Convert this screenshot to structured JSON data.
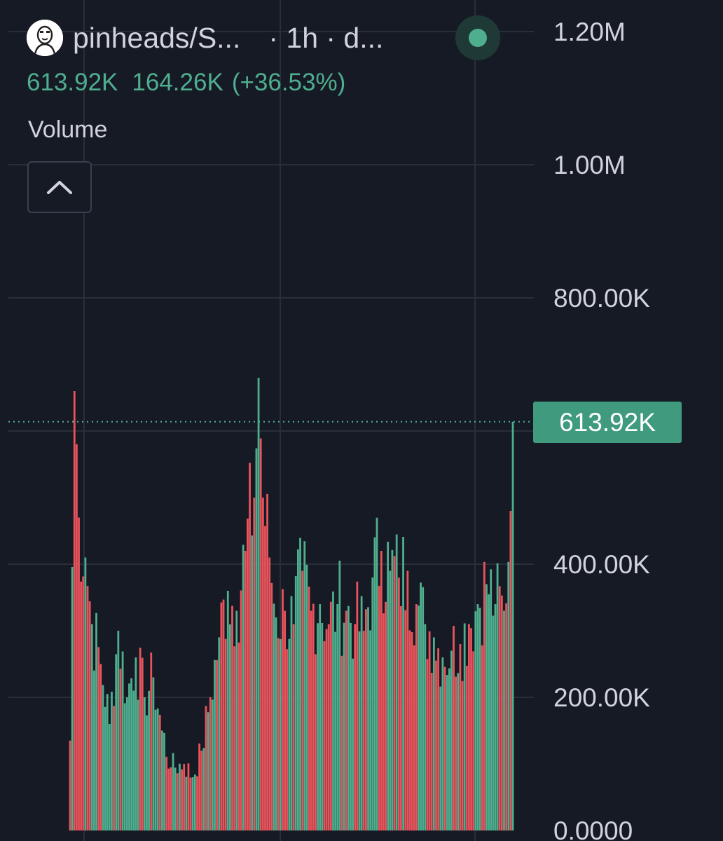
{
  "header": {
    "symbol": "pinheads/S...",
    "interval": "· 1h · d...",
    "status_color": "#4fae8e"
  },
  "legend": {
    "value": "613.92K",
    "change": "164.26K",
    "change_pct": "(+36.53%)"
  },
  "indicator": {
    "label": "Volume",
    "collapse_icon": "chevron-up-icon"
  },
  "price_tag": "613.92K",
  "colors": {
    "background": "#161a25",
    "up": "#4fae8e",
    "down": "#e8545c",
    "grid": "#2a2e39",
    "axis_text": "#d1d4dc"
  },
  "chart_data": {
    "type": "bar",
    "title": "Volume",
    "ylim": [
      0,
      1200000
    ],
    "y_ticks": [
      {
        "value": 0,
        "label": "0.0000"
      },
      {
        "value": 200000,
        "label": "200.00K"
      },
      {
        "value": 400000,
        "label": "400.00K"
      },
      {
        "value": 800000,
        "label": "800.00K"
      },
      {
        "value": 1000000,
        "label": "1.00M"
      },
      {
        "value": 1200000,
        "label": "1.20M"
      }
    ],
    "last_value": 613920,
    "series": [
      {
        "name": "up",
        "color": "#4fae8e"
      },
      {
        "name": "down",
        "color": "#e8545c"
      }
    ],
    "control_points": [
      [
        0,
        135000
      ],
      [
        2,
        660000
      ],
      [
        4,
        470000
      ],
      [
        7,
        410000
      ],
      [
        10,
        310000
      ],
      [
        14,
        250000
      ],
      [
        18,
        160000
      ],
      [
        22,
        300000
      ],
      [
        26,
        200000
      ],
      [
        30,
        260000
      ],
      [
        34,
        200000
      ],
      [
        38,
        230000
      ],
      [
        42,
        150000
      ],
      [
        46,
        95000
      ],
      [
        52,
        100000
      ],
      [
        56,
        80000
      ],
      [
        60,
        120000
      ],
      [
        64,
        200000
      ],
      [
        68,
        290000
      ],
      [
        72,
        360000
      ],
      [
        76,
        330000
      ],
      [
        80,
        420000
      ],
      [
        84,
        500000
      ],
      [
        86,
        680000
      ],
      [
        88,
        500000
      ],
      [
        91,
        410000
      ],
      [
        94,
        320000
      ],
      [
        98,
        330000
      ],
      [
        102,
        310000
      ],
      [
        106,
        390000
      ],
      [
        110,
        330000
      ],
      [
        114,
        340000
      ],
      [
        118,
        310000
      ],
      [
        122,
        340000
      ],
      [
        126,
        330000
      ],
      [
        130,
        310000
      ],
      [
        134,
        300000
      ],
      [
        138,
        380000
      ],
      [
        142,
        420000
      ],
      [
        146,
        390000
      ],
      [
        150,
        380000
      ],
      [
        154,
        390000
      ],
      [
        158,
        340000
      ],
      [
        162,
        310000
      ],
      [
        166,
        290000
      ],
      [
        170,
        260000
      ],
      [
        174,
        270000
      ],
      [
        178,
        280000
      ],
      [
        182,
        310000
      ],
      [
        186,
        340000
      ],
      [
        190,
        370000
      ],
      [
        194,
        340000
      ],
      [
        198,
        330000
      ],
      [
        201,
        480000
      ],
      [
        202,
        613920
      ]
    ]
  }
}
